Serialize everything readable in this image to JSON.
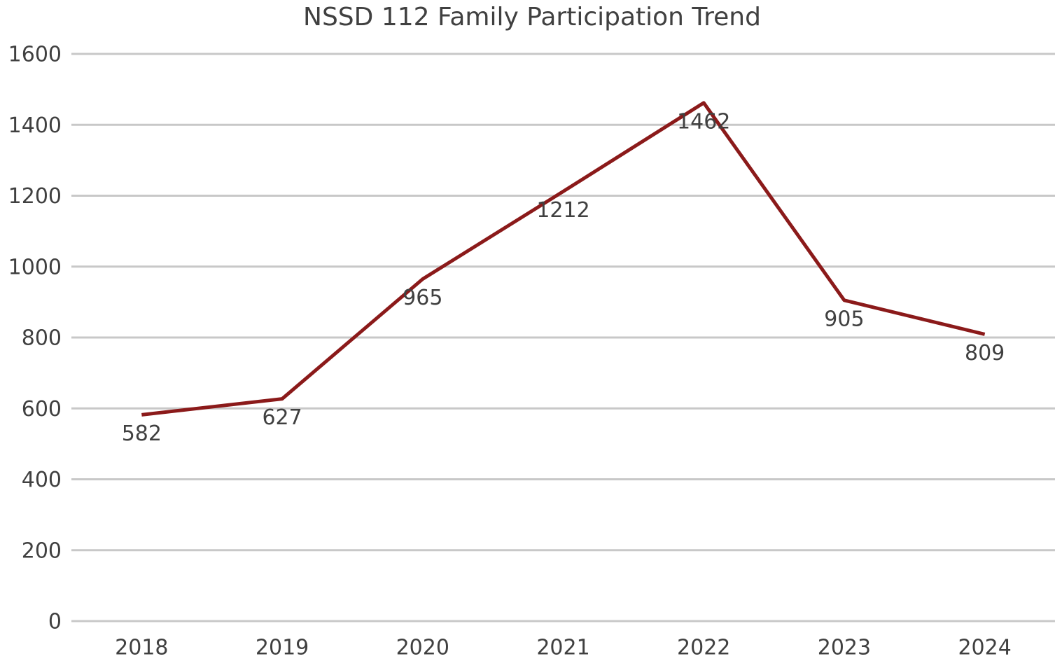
{
  "chart_data": {
    "type": "line",
    "title": "NSSD 112 Family Participation Trend",
    "categories": [
      "2018",
      "2019",
      "2020",
      "2021",
      "2022",
      "2023",
      "2024"
    ],
    "series": [
      {
        "name": "Family Participation",
        "color": "#8b1a1a",
        "values": [
          582,
          627,
          965,
          1212,
          1462,
          905,
          809
        ]
      }
    ],
    "ylim": [
      0,
      1600
    ],
    "yticks": [
      0,
      200,
      400,
      600,
      800,
      1000,
      1200,
      1400,
      1600
    ],
    "grid": true,
    "legend": false
  }
}
